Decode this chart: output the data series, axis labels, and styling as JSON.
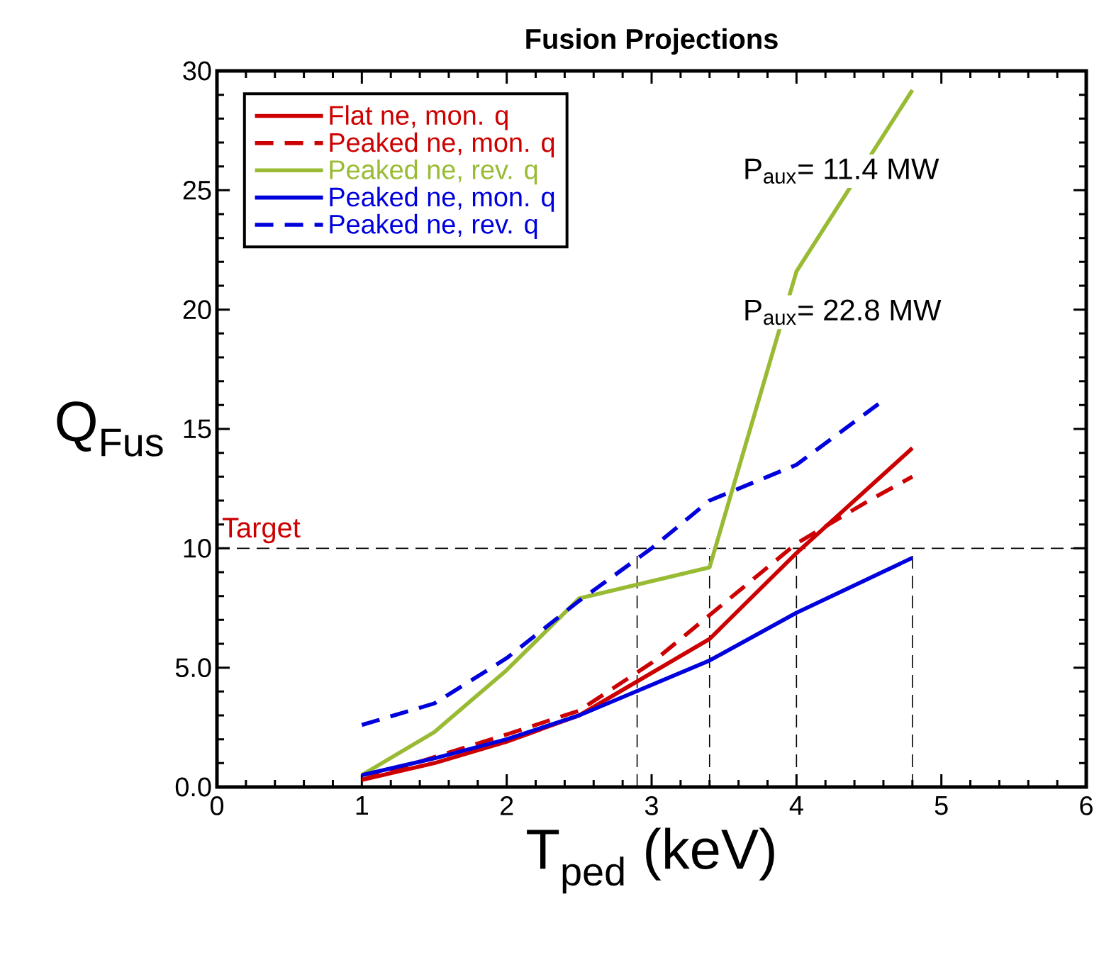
{
  "chart_data": {
    "type": "line",
    "title": "Fusion Projections",
    "xlabel": "T$_{ped}$ (keV)",
    "ylabel": "Q$_{Fus}$",
    "xlim": [
      0,
      6
    ],
    "ylim": [
      0,
      30
    ],
    "xticks": [
      0,
      1,
      2,
      3,
      4,
      5,
      6
    ],
    "yticks": [
      {
        "value": 0,
        "label": "0.0"
      },
      {
        "value": 5,
        "label": "5.0"
      },
      10,
      15,
      20,
      25,
      30
    ],
    "legend": "top left",
    "grid": false,
    "series": [
      {
        "name": "Flat ne, mon. q",
        "color": "#cc0000",
        "line_style": "solid",
        "x": [
          1,
          1.5,
          2,
          2.5,
          3.4,
          4,
          4.8
        ],
        "values": [
          0.3,
          1.0,
          1.9,
          3.0,
          6.2,
          9.8,
          14.2
        ]
      },
      {
        "name": "Peaked ne, mon. q",
        "color": "#cc0000",
        "line_style": "dashed",
        "x": [
          1,
          2,
          2.5,
          3,
          3.4,
          4,
          4.5,
          4.8
        ],
        "values": [
          0.3,
          2.2,
          3.2,
          5.2,
          7.2,
          10.2,
          12.0,
          13.0
        ]
      },
      {
        "name": "Peaked ne, rev. q",
        "color": "#99bb33",
        "line_style": "solid",
        "x": [
          1,
          1.5,
          2,
          2.5,
          3.4,
          4,
          4.8
        ],
        "values": [
          0.5,
          2.3,
          4.9,
          7.9,
          9.2,
          21.6,
          29.2
        ]
      },
      {
        "name": "Peaked ne, mon. q",
        "color": "#0000dd",
        "line_style": "solid",
        "x": [
          1,
          1.5,
          2,
          2.5,
          3.4,
          4,
          4.8
        ],
        "values": [
          0.5,
          1.2,
          2.0,
          3.0,
          5.3,
          7.3,
          9.6
        ]
      },
      {
        "name": "Peaked ne, rev. q",
        "color": "#0000dd",
        "line_style": "dashed",
        "x": [
          1,
          1.5,
          2,
          2.5,
          3,
          3.4,
          4,
          4.6
        ],
        "values": [
          2.6,
          3.5,
          5.4,
          7.8,
          10.0,
          12.0,
          13.5,
          16.2
        ]
      }
    ],
    "ref_lines": [
      {
        "axis": "y",
        "value": 10,
        "label": "Target",
        "line_style": "dashed"
      },
      {
        "axis": "x",
        "value": 2.9,
        "line_style": "dashed"
      },
      {
        "axis": "x",
        "value": 3.4,
        "line_style": "dashed"
      },
      {
        "axis": "x",
        "value": 4.0,
        "line_style": "dashed"
      },
      {
        "axis": "x",
        "value": 4.8,
        "line_style": "dashed"
      }
    ],
    "annotations": [
      "P$_{aux}$= 11.4 MW",
      "P$_{aux}$= 22.8 MW"
    ]
  }
}
